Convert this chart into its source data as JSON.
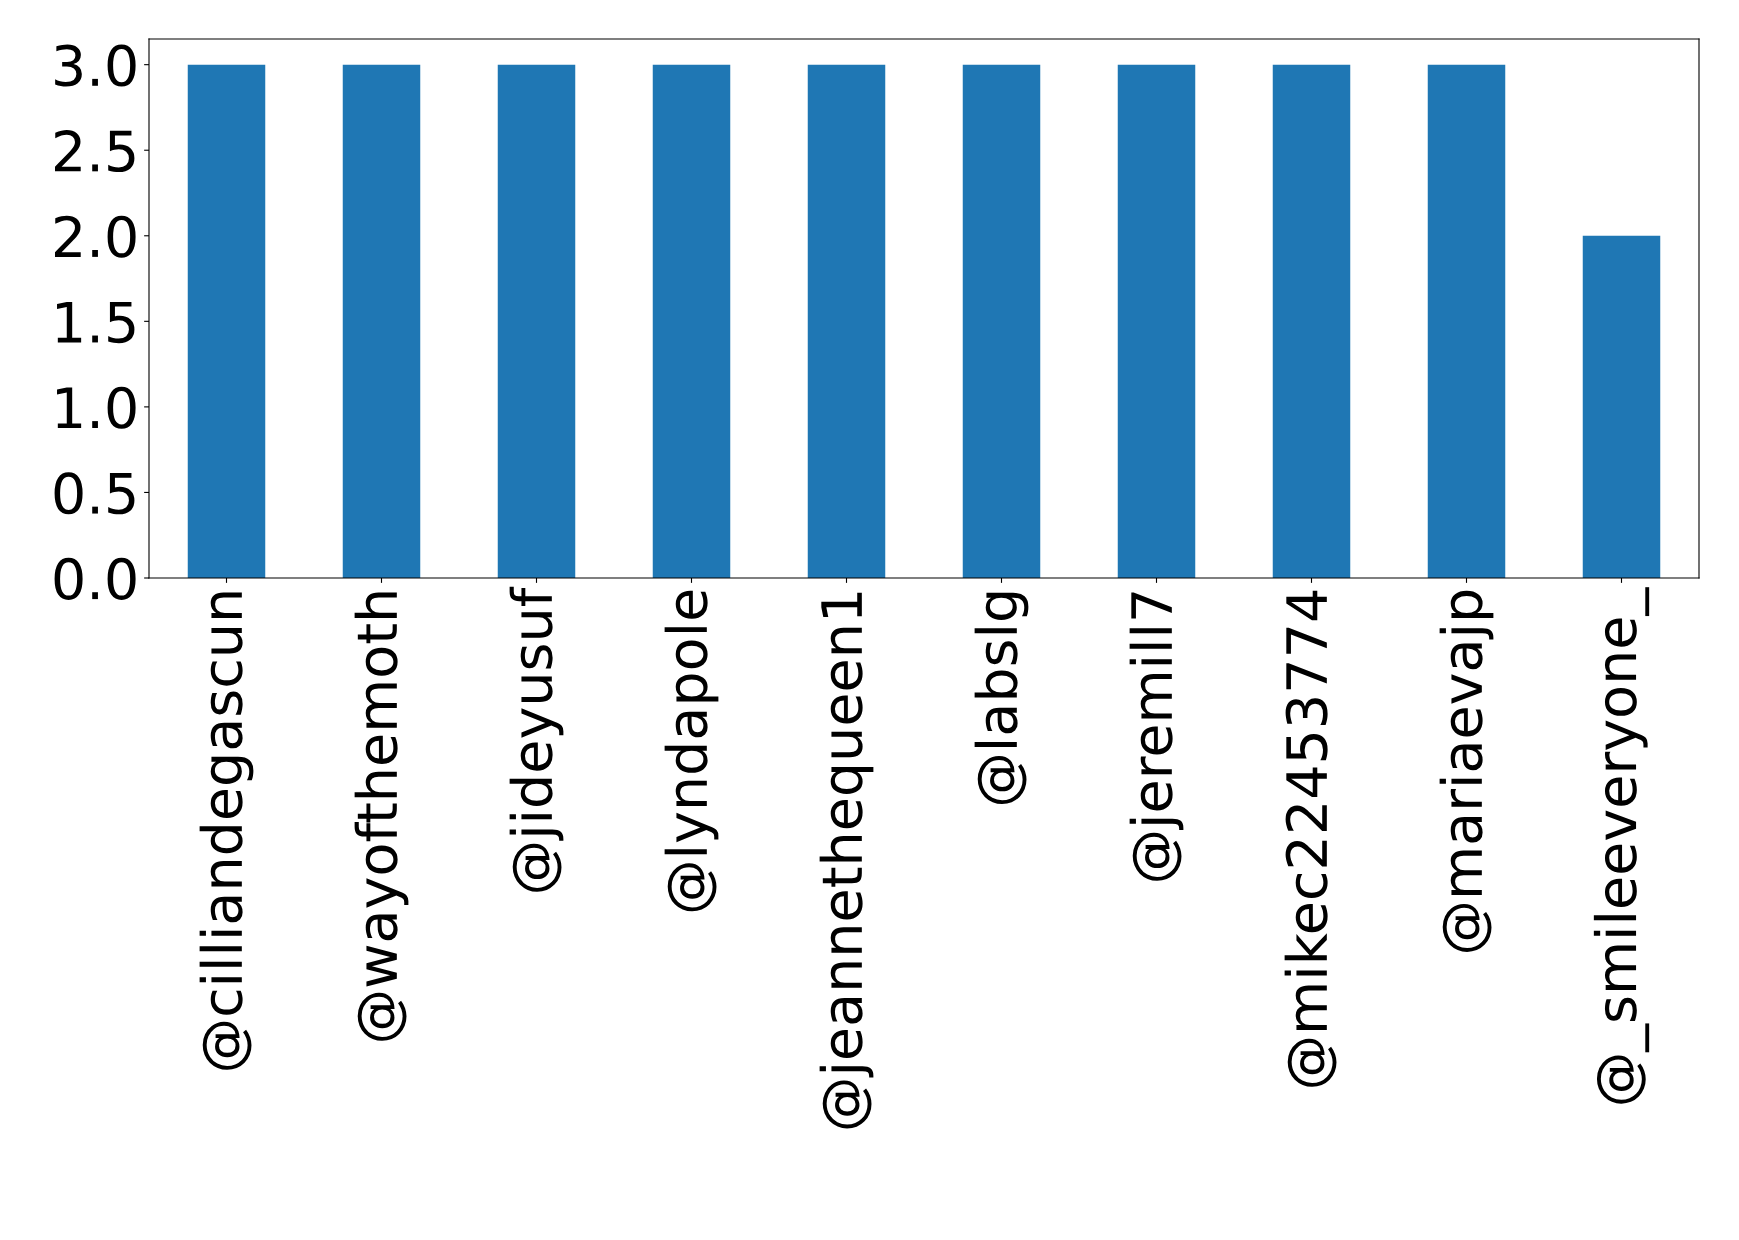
{
  "chart_data": {
    "type": "bar",
    "categories": [
      "@cilliandegascun",
      "@wayofthemoth",
      "@jideyusuf",
      "@lyndapole",
      "@jeannethequeen1",
      "@labslg",
      "@jeremill7",
      "@mikec22453774",
      "@mariaevajp",
      "@_smileeveryone_"
    ],
    "values": [
      3,
      3,
      3,
      3,
      3,
      3,
      3,
      3,
      3,
      2
    ],
    "color": "#1f77b4",
    "ylim": [
      0,
      3.15
    ],
    "yticks": [
      {
        "value": 0,
        "label": "0.0"
      },
      {
        "value": 0.5,
        "label": "0.5"
      },
      {
        "value": 1,
        "label": "1.0"
      },
      {
        "value": 1.5,
        "label": "1.5"
      },
      {
        "value": 2,
        "label": "2.0"
      },
      {
        "value": 2.5,
        "label": "2.5"
      },
      {
        "value": 3,
        "label": "3.0"
      }
    ],
    "grid": false,
    "legend": false
  }
}
